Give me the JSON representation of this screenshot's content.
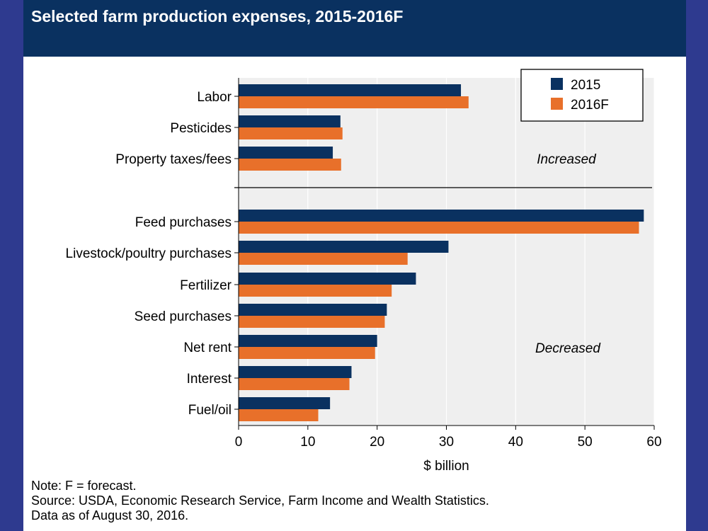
{
  "title": "Selected farm production expenses, 2015-2016F",
  "chart_data": {
    "type": "bar",
    "orientation": "horizontal",
    "xlabel": "$ billion",
    "xlim": [
      0,
      60
    ],
    "xticks": [
      "0",
      "10",
      "20",
      "30",
      "40",
      "50",
      "60"
    ],
    "grid": true,
    "legend_position": "top-right",
    "groups": [
      {
        "label": "Increased",
        "categories": [
          "Labor",
          "Pesticides",
          "Property taxes/fees"
        ]
      },
      {
        "label": "Decreased",
        "categories": [
          "Feed purchases",
          "Livestock/poultry purchases",
          "Fertilizer",
          "Seed purchases",
          "Net rent",
          "Interest",
          "Fuel/oil"
        ]
      }
    ],
    "categories": [
      "Labor",
      "Pesticides",
      "Property taxes/fees",
      "Feed purchases",
      "Livestock/poultry purchases",
      "Fertilizer",
      "Seed purchases",
      "Net rent",
      "Interest",
      "Fuel/oil"
    ],
    "series": [
      {
        "name": "2015",
        "color": "#0a3160",
        "values": [
          32.1,
          14.7,
          13.6,
          58.5,
          30.3,
          25.6,
          21.4,
          20.0,
          16.3,
          13.2
        ]
      },
      {
        "name": "2016F",
        "color": "#e8702a",
        "values": [
          33.2,
          15.0,
          14.8,
          57.8,
          24.4,
          22.1,
          21.1,
          19.7,
          16.0,
          11.5
        ]
      }
    ]
  },
  "footer": {
    "note": "Note: F = forecast.",
    "source": "Source: USDA, Economic Research Service, Farm Income and Wealth Statistics.",
    "date": "Data as of August 30, 2016."
  }
}
